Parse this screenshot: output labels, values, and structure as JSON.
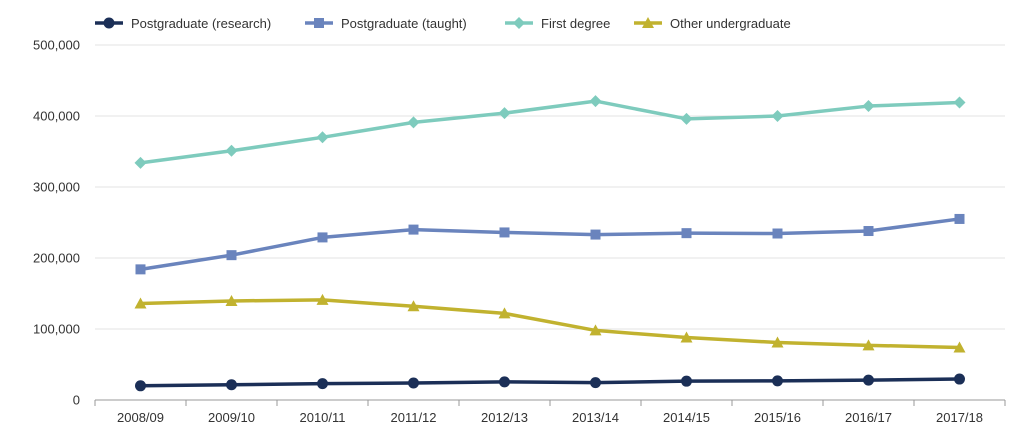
{
  "chart_data": {
    "type": "line",
    "categories": [
      "2008/09",
      "2009/10",
      "2010/11",
      "2011/12",
      "2012/13",
      "2013/14",
      "2014/15",
      "2015/16",
      "2016/17",
      "2017/18"
    ],
    "ylim": [
      0,
      500000
    ],
    "y_ticks": [
      0,
      100000,
      200000,
      300000,
      400000,
      500000
    ],
    "y_tick_labels": [
      "0",
      "100,000",
      "200,000",
      "300,000",
      "400,000",
      "500,000"
    ],
    "grid": true,
    "legend_position": "top-left",
    "series": [
      {
        "name": "Postgraduate (research)",
        "color": "#1b2f57",
        "marker": "circle",
        "values": [
          20000,
          21500,
          23000,
          24000,
          25500,
          24500,
          26500,
          27000,
          28000,
          29500
        ]
      },
      {
        "name": "Postgraduate (taught)",
        "color": "#6a84bd",
        "marker": "square",
        "values": [
          184000,
          204000,
          229000,
          240000,
          236000,
          233000,
          235000,
          234500,
          238000,
          255000
        ]
      },
      {
        "name": "First degree",
        "color": "#7ecbbd",
        "marker": "diamond",
        "values": [
          334000,
          351000,
          370000,
          391000,
          404000,
          421000,
          396000,
          400000,
          414000,
          419000
        ]
      },
      {
        "name": "Other undergraduate",
        "color": "#c1b22f",
        "marker": "triangle",
        "values": [
          136000,
          139500,
          141000,
          132000,
          122000,
          98000,
          88000,
          81000,
          77000,
          74000
        ]
      }
    ]
  }
}
